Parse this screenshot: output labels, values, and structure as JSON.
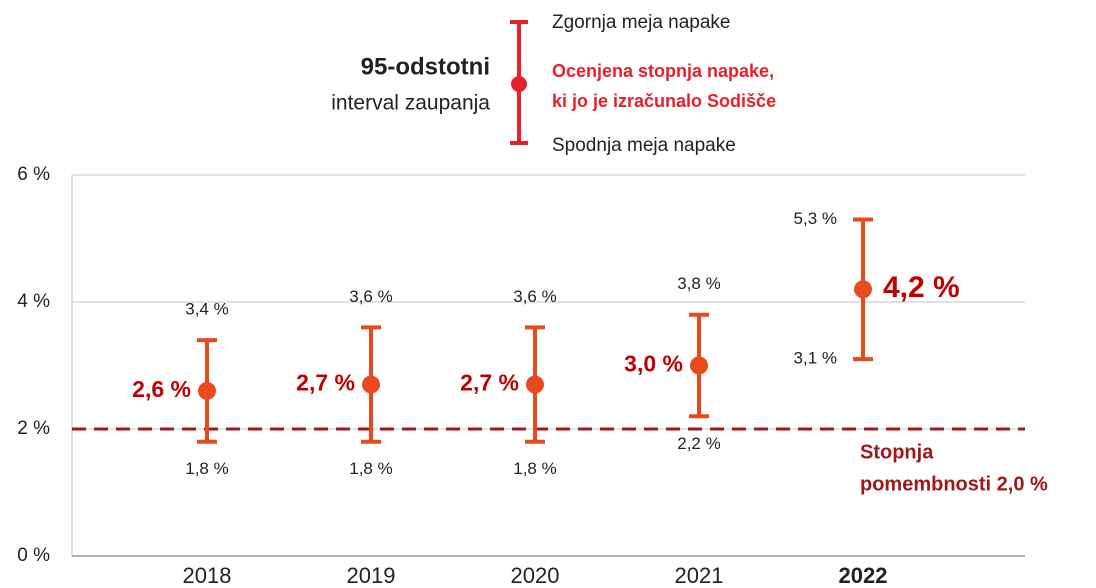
{
  "chart_data": {
    "type": "errorbar",
    "legend": {
      "title": "95-odstotni",
      "subtitle": "interval zaupanja",
      "upper": "Zgornja meja napake",
      "estimate": [
        "Ocenjena stopnja napake,",
        "ki jo je izračunalo Sodišče"
      ],
      "lower": "Spodnja meja napake",
      "color": "#e8202a"
    },
    "categories": [
      "2018",
      "2019",
      "2020",
      "2021",
      "2022"
    ],
    "series": [
      {
        "color": "#e84a1e",
        "values": [
          2.6,
          2.7,
          2.7,
          3.0,
          4.2
        ],
        "value_labels": [
          "2,6 %",
          "2,7 %",
          "2,7 %",
          "3,0 %",
          "4,2 %"
        ],
        "upper": [
          3.4,
          3.6,
          3.6,
          3.8,
          5.3
        ],
        "upper_labels": [
          "3,4 %",
          "3,6 %",
          "3,6 %",
          "3,8 %",
          "5,3 %"
        ],
        "lower": [
          1.8,
          1.8,
          1.8,
          2.2,
          3.1
        ],
        "lower_labels": [
          "1,8 %",
          "1,8 %",
          "1,8 %",
          "2,2 %",
          "3,1 %"
        ]
      }
    ],
    "threshold": {
      "value": 2.0,
      "label": [
        "Stopnja",
        "pomembnosti 2,0 %"
      ],
      "color": "#a01818"
    },
    "ylim": [
      0,
      6
    ],
    "yticks": [
      {
        "value": 0,
        "label": "0 %"
      },
      {
        "value": 2,
        "label": "2 %"
      },
      {
        "value": 4,
        "label": "4 %"
      },
      {
        "value": 6,
        "label": "6 %"
      }
    ],
    "grid": true
  }
}
